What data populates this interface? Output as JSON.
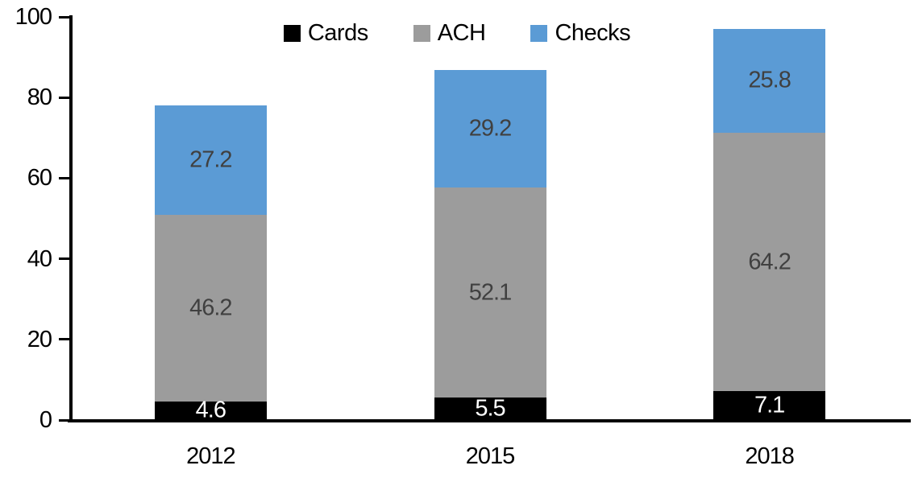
{
  "chart_data": {
    "type": "bar",
    "stacked": true,
    "categories": [
      "2012",
      "2015",
      "2018"
    ],
    "series": [
      {
        "name": "Cards",
        "color": "#000000",
        "label_color": "#ffffff",
        "values": [
          4.6,
          5.5,
          7.1
        ]
      },
      {
        "name": "ACH",
        "color": "#9c9c9c",
        "label_color": "#404040",
        "values": [
          46.2,
          52.1,
          64.2
        ]
      },
      {
        "name": "Checks",
        "color": "#5b9bd5",
        "label_color": "#404040",
        "values": [
          27.2,
          29.2,
          25.8
        ]
      }
    ],
    "totals": [
      78.0,
      86.8,
      97.1
    ],
    "title": "",
    "xlabel": "",
    "ylabel": "",
    "ylim": [
      0,
      100
    ],
    "yticks": [
      0,
      20,
      40,
      60,
      80,
      100
    ],
    "legend_position": "top-center",
    "grid": false,
    "data_labels": true,
    "axis_color": "#000000"
  }
}
